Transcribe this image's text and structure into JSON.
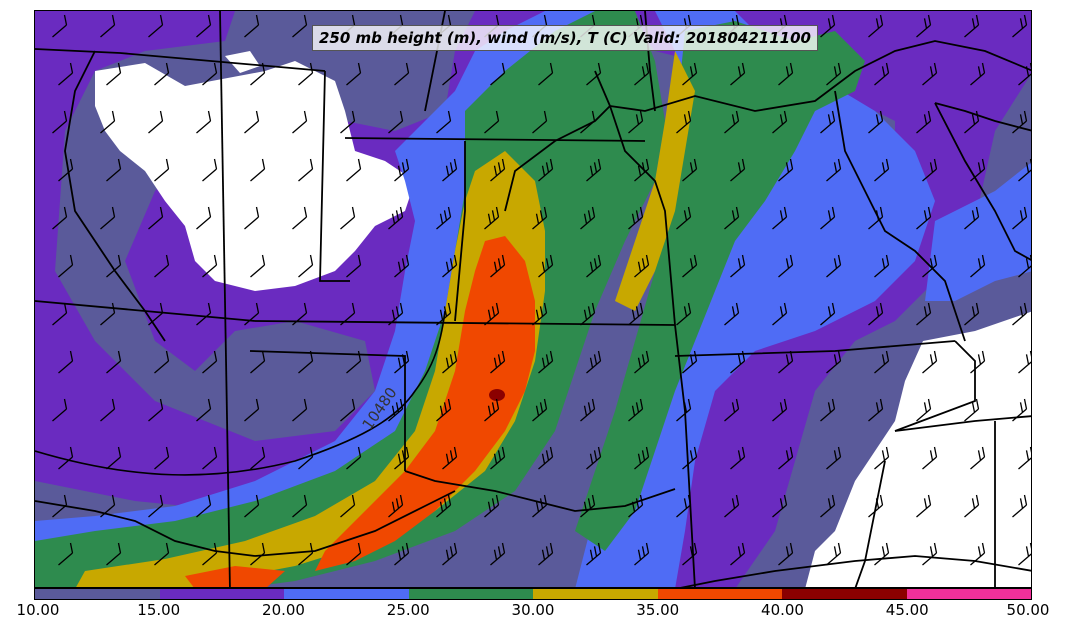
{
  "title": "250 mb height (m), wind (m/s), T (C) Valid: 201804211100",
  "contour_label": "10480",
  "colorbar": {
    "ticks": [
      "10.00",
      "15.00",
      "20.00",
      "25.00",
      "30.00",
      "35.00",
      "40.00",
      "45.00",
      "50.00"
    ],
    "colors": [
      "#5a5a9a",
      "#6a2bc0",
      "#4f6cf5",
      "#2e8b4e",
      "#c8a800",
      "#f04800",
      "#8b0000",
      "#f0309a"
    ]
  }
}
